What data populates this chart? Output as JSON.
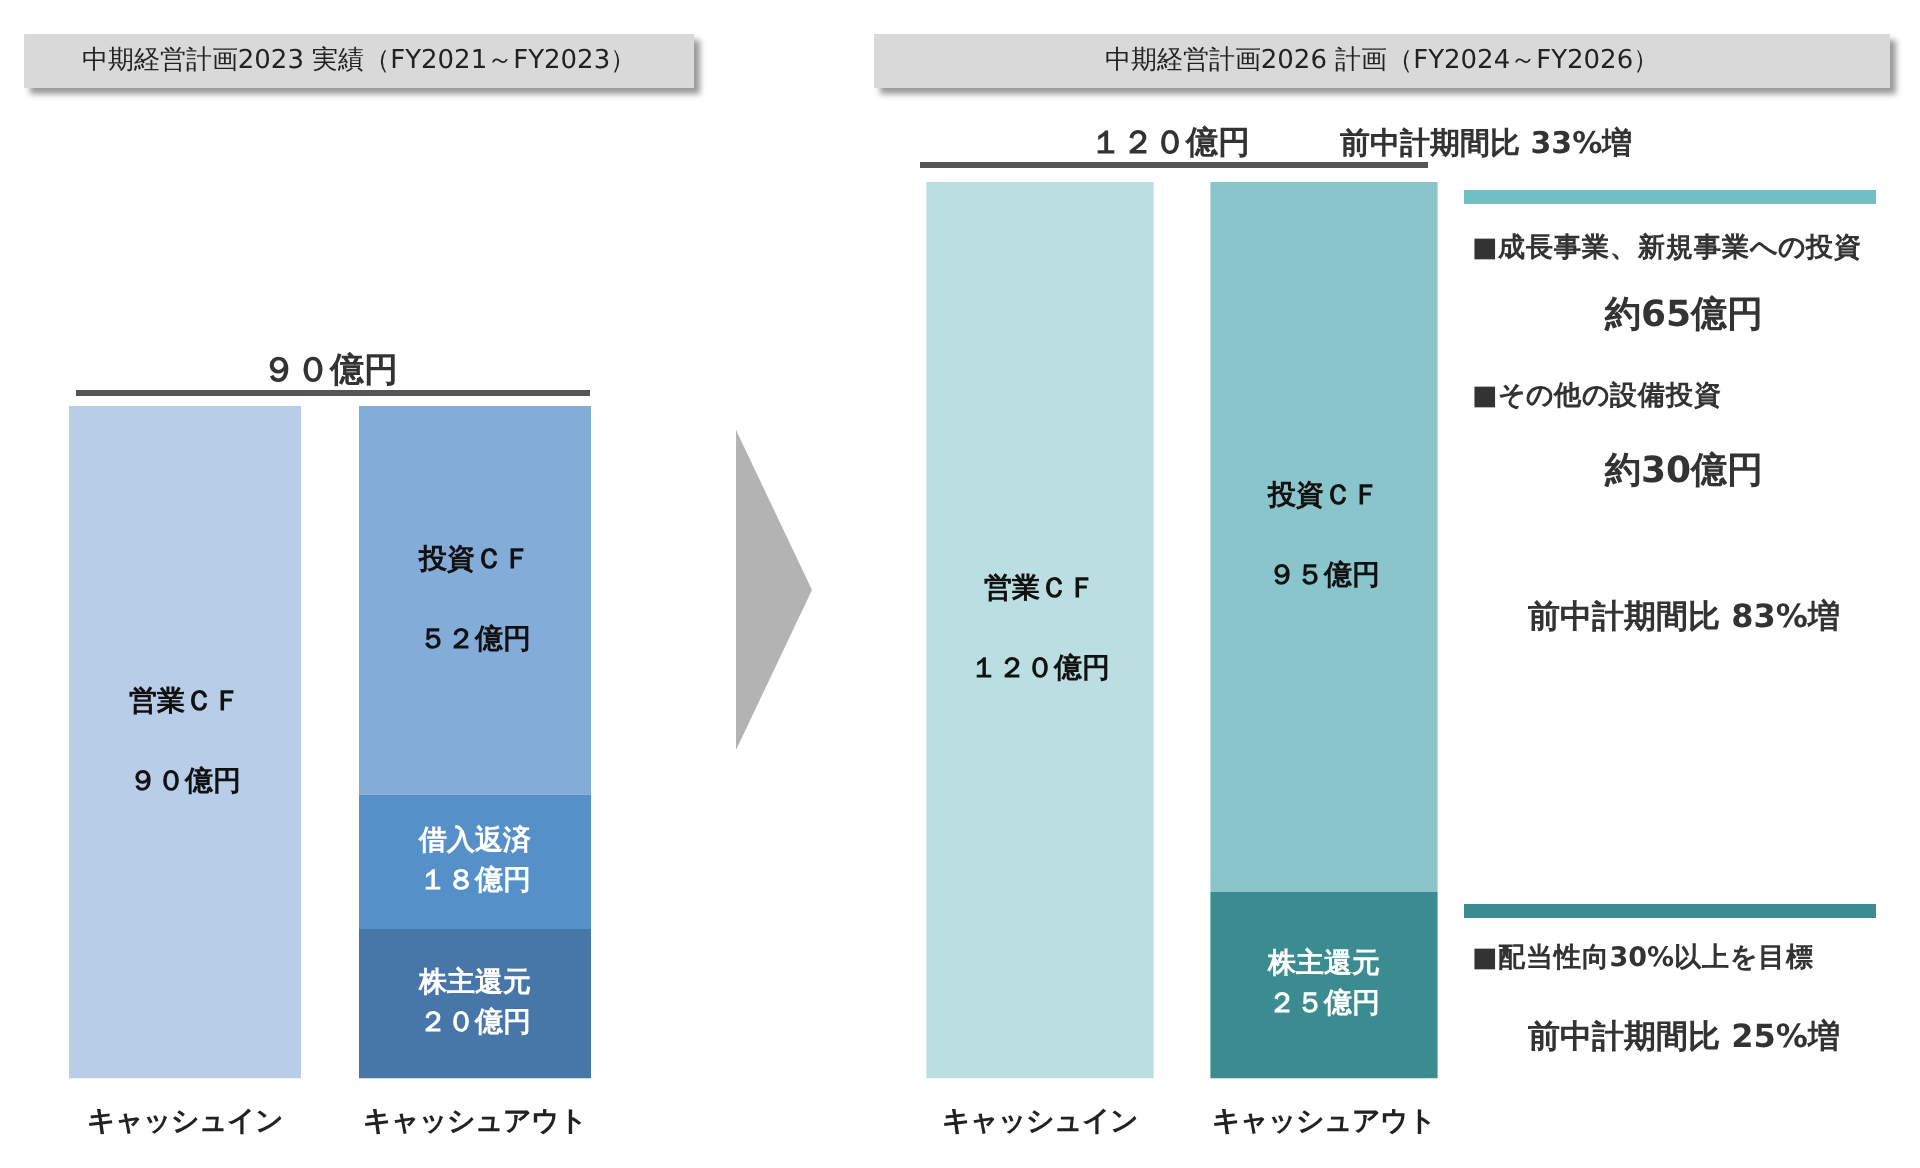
{
  "chart_data": [
    {
      "type": "bar",
      "title": "中期経営計画2023 実績（FY2021～FY2023）",
      "stacked": true,
      "categories": [
        "キャッシュイン",
        "キャッシュアウト"
      ],
      "series": [
        {
          "name": "営業ＣＦ",
          "color": "#b7cde8",
          "values": [
            90,
            null
          ],
          "value_labels": [
            "９０億円",
            null
          ]
        },
        {
          "name": "株主還元",
          "color": "#4677a8",
          "values": [
            null,
            20
          ],
          "value_labels": [
            null,
            "２０億円"
          ]
        },
        {
          "name": "借入返済",
          "color": "#5690c8",
          "values": [
            null,
            18
          ],
          "value_labels": [
            null,
            "１８億円"
          ]
        },
        {
          "name": "投資ＣＦ",
          "color": "#84acd9",
          "values": [
            null,
            52
          ],
          "value_labels": [
            null,
            "５２億円"
          ]
        }
      ],
      "annotations": [
        "９０億円"
      ],
      "legend": false
    },
    {
      "type": "bar",
      "title": "中期経営計画2026 計画（FY2024～FY2026）",
      "stacked": true,
      "categories": [
        "キャッシュイン",
        "キャッシュアウト"
      ],
      "series": [
        {
          "name": "営業ＣＦ",
          "color": "#badee2",
          "values": [
            120,
            null
          ],
          "value_labels": [
            "１２０億円",
            null
          ]
        },
        {
          "name": "株主還元",
          "color": "#3b8c90",
          "values": [
            null,
            25
          ],
          "value_labels": [
            null,
            "２５億円"
          ]
        },
        {
          "name": "投資ＣＦ",
          "color": "#8bc5cc",
          "values": [
            null,
            95
          ],
          "value_labels": [
            null,
            "９５億円"
          ]
        }
      ],
      "annotations": [
        "１２０億円",
        "前中計期間比  33%増",
        "■成長事業、新規事業への投資",
        "約65億円",
        "■その他の設備投資",
        "約30億円",
        "前中計期間比 83%増",
        "■配当性向30%以上を目標",
        "前中計期間比  25%増"
      ],
      "legend": false
    }
  ]
}
